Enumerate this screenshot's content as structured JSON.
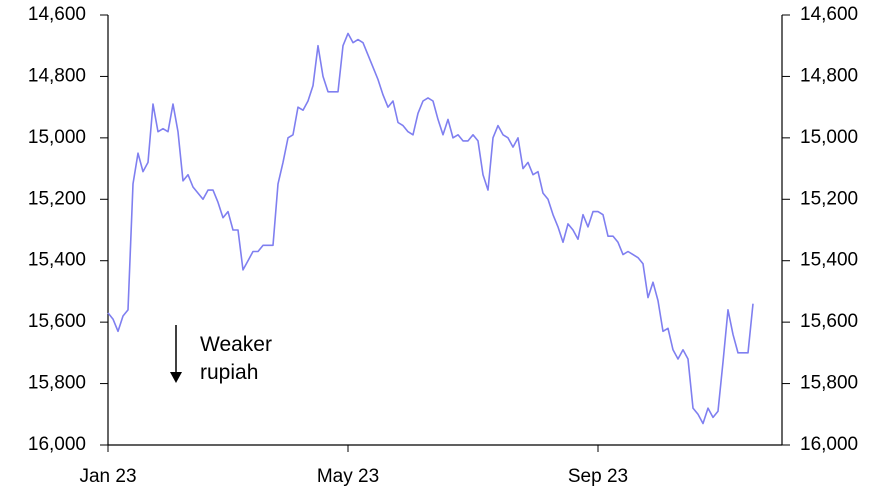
{
  "chart_data": {
    "type": "line",
    "annotation": "Weaker rupiah",
    "categories": [
      "Jan 23",
      null,
      null,
      null,
      null,
      null,
      null,
      null,
      null,
      null,
      null,
      null,
      null,
      null,
      null,
      null,
      null,
      null,
      null,
      null,
      null,
      null,
      null,
      null,
      null,
      null,
      null,
      null,
      null,
      null,
      null,
      null,
      null,
      null,
      null,
      null,
      null,
      null,
      null,
      null,
      null,
      null,
      null,
      null,
      null,
      null,
      null,
      null,
      "May 23",
      null,
      null,
      null,
      null,
      null,
      null,
      null,
      null,
      null,
      null,
      null,
      null,
      null,
      null,
      null,
      null,
      null,
      null,
      null,
      null,
      null,
      null,
      null,
      null,
      null,
      null,
      null,
      null,
      null,
      null,
      null,
      null,
      null,
      null,
      null,
      null,
      null,
      null,
      null,
      null,
      null,
      null,
      null,
      null,
      null,
      null,
      null,
      null,
      null,
      "Sep 23",
      null,
      null,
      null,
      null,
      null,
      null,
      null,
      null,
      null,
      null,
      null,
      null,
      null,
      null,
      null,
      null,
      null,
      null,
      null,
      null,
      null,
      null,
      null,
      null,
      null,
      null,
      null,
      null,
      null,
      null,
      null,
      null,
      null,
      null,
      null,
      null,
      null
    ],
    "series": [
      {
        "color": "#7f7ff0",
        "values": [
          15570,
          15590,
          15630,
          15580,
          15560,
          15150,
          15050,
          15110,
          15080,
          14890,
          14980,
          14970,
          14980,
          14890,
          14980,
          15140,
          15120,
          15160,
          15180,
          15200,
          15170,
          15170,
          15210,
          15260,
          15240,
          15300,
          15300,
          15430,
          15400,
          15370,
          15370,
          15350,
          15350,
          15350,
          15150,
          15080,
          15000,
          14990,
          14900,
          14910,
          14880,
          14830,
          14700,
          14800,
          14850,
          14850,
          14850,
          14700,
          14660,
          14690,
          14680,
          14690,
          14730,
          14770,
          14810,
          14860,
          14900,
          14880,
          14950,
          14960,
          14980,
          14990,
          14920,
          14880,
          14870,
          14880,
          14940,
          14990,
          14940,
          15000,
          14990,
          15010,
          15010,
          14990,
          15010,
          15120,
          15170,
          15000,
          14960,
          14990,
          15000,
          15030,
          15000,
          15100,
          15080,
          15120,
          15110,
          15180,
          15200,
          15250,
          15290,
          15340,
          15280,
          15300,
          15330,
          15250,
          15290,
          15240,
          15240,
          15250,
          15320,
          15320,
          15340,
          15380,
          15370,
          15380,
          15390,
          15410,
          15520,
          15470,
          15530,
          15630,
          15620,
          15690,
          15720,
          15690,
          15720,
          15880,
          15900,
          15930,
          15880,
          15910,
          15890,
          15730,
          15560,
          15640,
          15700,
          15700,
          15700,
          15540,
          null,
          null,
          null,
          null,
          null,
          null
        ]
      }
    ],
    "ylim": [
      16000,
      14600
    ],
    "yticks": [
      {
        "value": 14600,
        "label": "14,600"
      },
      {
        "value": 14800,
        "label": "14,800"
      },
      {
        "value": 15000,
        "label": "15,000"
      },
      {
        "value": 15200,
        "label": "15,200"
      },
      {
        "value": 15400,
        "label": "15,400"
      },
      {
        "value": 15600,
        "label": "15,600"
      },
      {
        "value": 15800,
        "label": "15,800"
      },
      {
        "value": 16000,
        "label": "16,000"
      }
    ],
    "y2lim": [
      16000,
      14600
    ],
    "y2ticks": [
      {
        "value": 14600,
        "label": "14,600"
      },
      {
        "value": 14800,
        "label": "14,800"
      },
      {
        "value": 15000,
        "label": "15,000"
      },
      {
        "value": 15200,
        "label": "15,200"
      },
      {
        "value": 15400,
        "label": "15,400"
      },
      {
        "value": 15600,
        "label": "15,600"
      },
      {
        "value": 15800,
        "label": "15,800"
      },
      {
        "value": 16000,
        "label": "16,000"
      }
    ]
  }
}
